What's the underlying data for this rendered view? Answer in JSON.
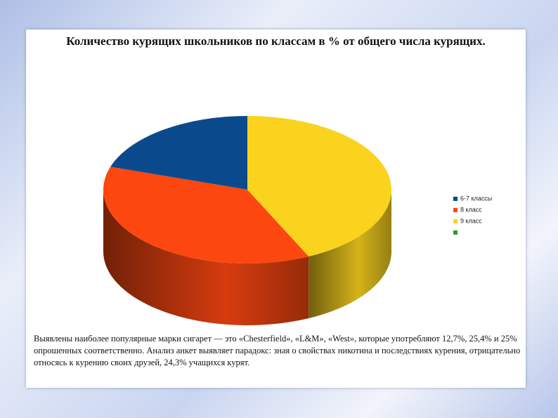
{
  "chart_data": {
    "type": "pie",
    "title": "Количество курящих школьников по классам в % от общего числа курящих.",
    "categories": [
      "6-7 классы",
      "8 класс",
      "9 класс",
      null
    ],
    "values": [
      20,
      37,
      43,
      null
    ],
    "colors": [
      "#0a4a8c",
      "#fc4710",
      "#fad31f",
      "#2e9a2e"
    ],
    "note": "Выявлены наиболее популярные марки сигарет — это «Chesterfield», «L&M», «West», которые употребляют 12,7%, 25,4% и 25% опрошенных соответственно. Анализ анкет выявляет парадокс: зная о свойствах никотина и последствиях курения, отрицательно относясь к курению своих друзей, 24,3% учащихся курят."
  }
}
